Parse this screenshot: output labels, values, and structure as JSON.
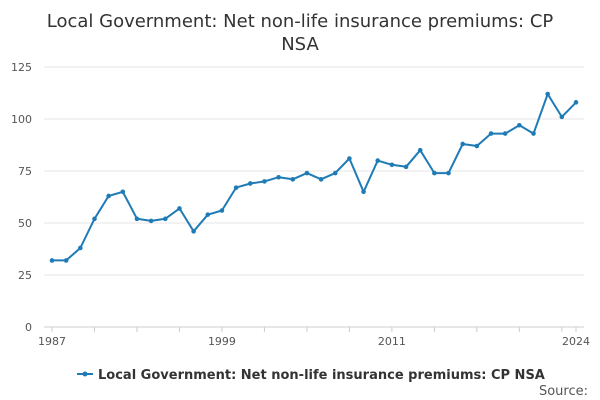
{
  "chart_data": {
    "type": "line",
    "title": "Local Government: Net non-life insurance premiums: CP NSA",
    "title_lines": [
      "Local Government: Net non-life insurance premiums: CP",
      "NSA"
    ],
    "xlabel": "",
    "ylabel": "",
    "x": [
      1987,
      1988,
      1989,
      1990,
      1991,
      1992,
      1993,
      1994,
      1995,
      1996,
      1997,
      1998,
      1999,
      2000,
      2001,
      2002,
      2003,
      2004,
      2005,
      2006,
      2007,
      2008,
      2009,
      2010,
      2011,
      2012,
      2013,
      2014,
      2015,
      2016,
      2017,
      2018,
      2019,
      2020,
      2021,
      2022,
      2023,
      2024
    ],
    "series": [
      {
        "name": "Local Government: Net non-life insurance premiums: CP NSA",
        "color": "#1f7bb6",
        "values": [
          32,
          32,
          38,
          52,
          63,
          65,
          52,
          51,
          52,
          57,
          46,
          54,
          56,
          67,
          69,
          70,
          72,
          71,
          74,
          71,
          74,
          81,
          65,
          80,
          78,
          77,
          85,
          74,
          74,
          88,
          87,
          93,
          93,
          97,
          93,
          112,
          101,
          108
        ]
      }
    ],
    "xlim": [
      1987,
      2024
    ],
    "ylim": [
      0,
      125
    ],
    "y_ticks": [
      0,
      25,
      50,
      75,
      100,
      125
    ],
    "x_tick_labels": [
      "1987",
      "1999",
      "2011",
      "2024"
    ],
    "x_tick_label_years": [
      1987,
      1999,
      2011,
      2024
    ],
    "grid": true,
    "legend_position": "bottom",
    "source_label": "Source:"
  }
}
